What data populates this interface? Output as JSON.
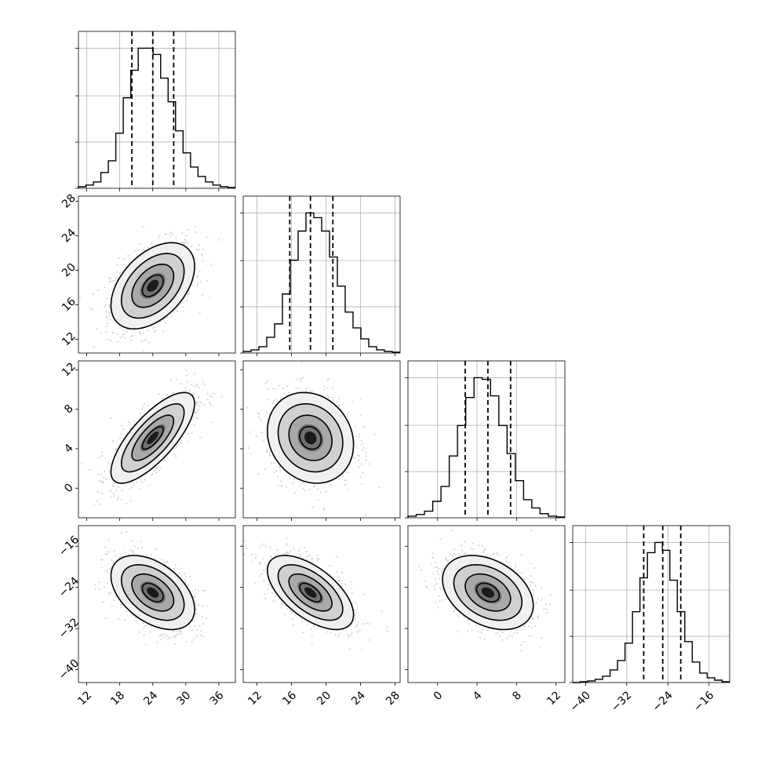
{
  "chart_data": {
    "type": "corner",
    "parameters": [
      {
        "ticks": [
          12,
          18,
          24,
          30,
          36
        ],
        "range": [
          10.5,
          39
        ],
        "tick_labels": [
          "12",
          "18",
          "24",
          "30",
          "36"
        ]
      },
      {
        "ticks": [
          12,
          16,
          20,
          24,
          28
        ],
        "range": [
          10.4,
          28.6
        ],
        "tick_labels": [
          "12",
          "16",
          "20",
          "24",
          "28"
        ]
      },
      {
        "ticks": [
          0,
          4,
          8,
          12
        ],
        "range": [
          -3.0,
          12.9
        ],
        "tick_labels": [
          "0",
          "4",
          "8",
          "12"
        ]
      },
      {
        "ticks": [
          -40,
          -32,
          -24,
          -16
        ],
        "range": [
          -42.5,
          -12.0
        ],
        "tick_labels": [
          "−40",
          "−32",
          "−24",
          "−16"
        ]
      }
    ],
    "marginals": [
      {
        "quantiles": [
          20.2,
          24.0,
          27.8
        ],
        "bin_edges": [
          10.5,
          39.0
        ],
        "counts": [
          2,
          4,
          8,
          20,
          35,
          70,
          115,
          150,
          178,
          178,
          170,
          140,
          110,
          73,
          45,
          27,
          15,
          8,
          4,
          2,
          1
        ]
      },
      {
        "quantiles": [
          15.8,
          18.2,
          20.8
        ],
        "bin_edges": [
          10.4,
          28.6
        ],
        "counts": [
          2,
          4,
          8,
          20,
          37,
          75,
          118,
          155,
          178,
          172,
          155,
          122,
          85,
          52,
          32,
          18,
          8,
          4,
          2,
          1
        ]
      },
      {
        "quantiles": [
          2.8,
          5.1,
          7.4
        ],
        "bin_edges": [
          -3.0,
          12.9
        ],
        "counts": [
          2,
          4,
          8,
          20,
          38,
          75,
          112,
          146,
          170,
          168,
          148,
          112,
          78,
          45,
          22,
          12,
          5,
          2,
          1
        ]
      },
      {
        "quantiles": [
          -28.7,
          -25.0,
          -21.5
        ],
        "bin_edges": [
          -42.5,
          -12.0
        ],
        "counts": [
          0,
          1,
          2,
          4,
          8,
          16,
          28,
          50,
          90,
          133,
          165,
          178,
          168,
          130,
          90,
          52,
          26,
          12,
          6,
          3,
          1
        ]
      }
    ],
    "pairs": [
      {
        "x_param": 0,
        "y_param": 1,
        "mean": [
          24.0,
          18.2
        ],
        "sd": [
          3.8,
          2.5
        ],
        "corr": 0.45
      },
      {
        "x_param": 0,
        "y_param": 2,
        "mean": [
          24.0,
          5.1
        ],
        "sd": [
          3.8,
          2.3
        ],
        "corr": 0.75
      },
      {
        "x_param": 1,
        "y_param": 2,
        "mean": [
          18.2,
          5.1
        ],
        "sd": [
          2.5,
          2.3
        ],
        "corr": -0.15
      },
      {
        "x_param": 0,
        "y_param": 3,
        "mean": [
          24.0,
          -25.0
        ],
        "sd": [
          3.8,
          3.6
        ],
        "corr": -0.45
      },
      {
        "x_param": 1,
        "y_param": 3,
        "mean": [
          18.2,
          -25.0
        ],
        "sd": [
          2.5,
          3.6
        ],
        "corr": -0.6
      },
      {
        "x_param": 2,
        "y_param": 3,
        "mean": [
          5.1,
          -25.0
        ],
        "sd": [
          2.3,
          3.6
        ],
        "corr": -0.35
      }
    ],
    "grid": true,
    "colors": {
      "line": "#000000",
      "grid": "#b0b0b0",
      "points": "#9a9a9a"
    }
  }
}
